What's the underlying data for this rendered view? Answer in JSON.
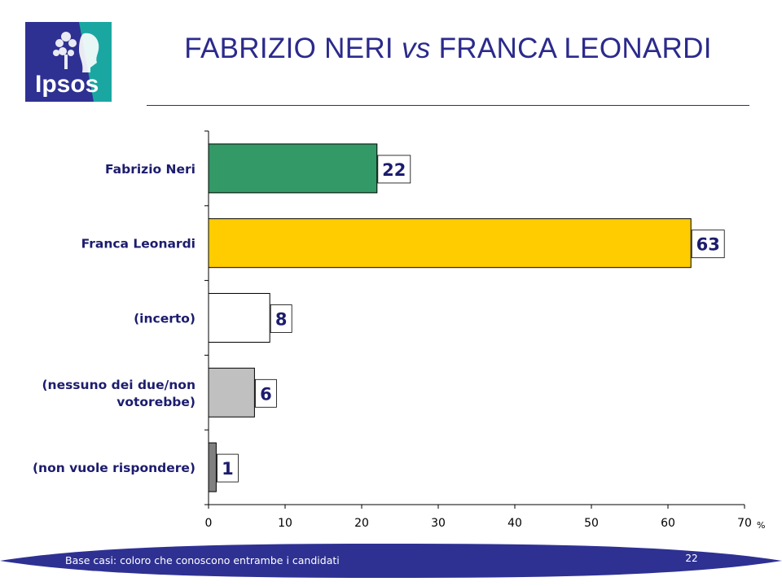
{
  "brand": {
    "logo_text": "Ipsos",
    "logo_color": "#2e3192",
    "logo_accent": "#1aa7a1"
  },
  "title": {
    "left": "FABRIZIO NERI ",
    "vs": "vs",
    "right": " FRANCA LEONARDI"
  },
  "colors": {
    "title": "#2b2a8c",
    "category_text": "#1c1c6e",
    "value_text": "#1c1c6e",
    "footer_band": "#2e3192"
  },
  "chart_data": {
    "type": "bar",
    "orientation": "horizontal",
    "categories": [
      "Fabrizio Neri",
      "Franca Leonardi",
      "(incerto)",
      "(nessuno dei due/non votorebbe)",
      "(non vuole rispondere)"
    ],
    "category_lines": [
      [
        "Fabrizio Neri"
      ],
      [
        "Franca Leonardi"
      ],
      [
        "(incerto)"
      ],
      [
        "(nessuno dei due/non",
        "votorebbe)"
      ],
      [
        "(non vuole rispondere)"
      ]
    ],
    "values": [
      22,
      63,
      8,
      6,
      1
    ],
    "value_labels": [
      "22",
      "63",
      "8",
      "6",
      "1"
    ],
    "bar_colors": [
      "#339966",
      "#ffcc00",
      "#ffffff",
      "#c0c0c0",
      "#808080"
    ],
    "xlim": [
      0,
      70
    ],
    "xticks": [
      "0",
      "10",
      "20",
      "30",
      "40",
      "50",
      "60",
      "70"
    ],
    "unit_label": "%",
    "grid": false,
    "legend": "none"
  },
  "footer": {
    "note": "Base casi: coloro che conoscono entrambe i candidati",
    "page_number": "22"
  }
}
